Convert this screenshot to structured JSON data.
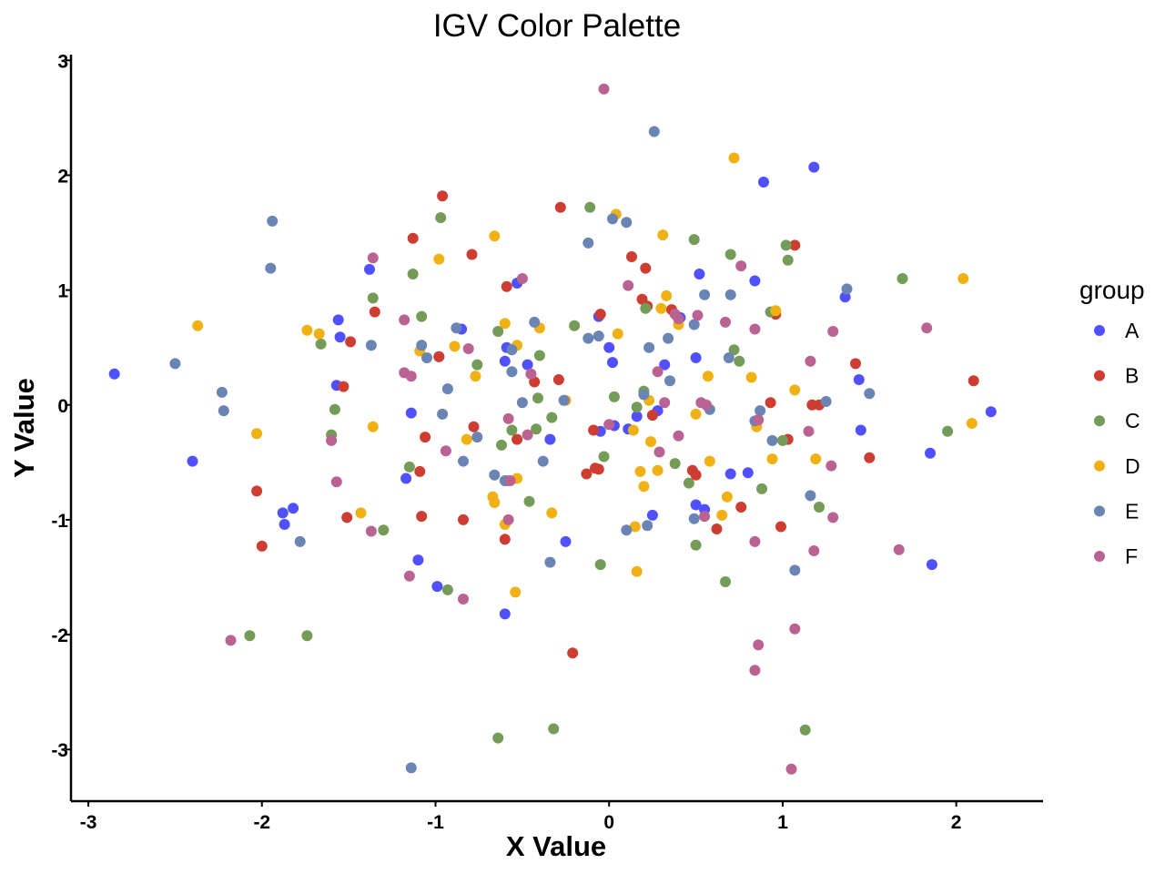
{
  "chart_data": {
    "type": "scatter",
    "title": "IGV Color Palette",
    "xlabel": "X Value",
    "ylabel": "Y Value",
    "xlim": [
      -3.1,
      2.5
    ],
    "ylim": [
      -3.45,
      3.05
    ],
    "xticks": [
      "-3",
      "-2",
      "-1",
      "0",
      "1",
      "2"
    ],
    "yticks": [
      "-3",
      "-2",
      "-1",
      "0",
      "1",
      "2",
      "3"
    ],
    "grid": false,
    "legend": {
      "title": "group",
      "position": "right"
    },
    "series": [
      {
        "name": "A",
        "color": "#5050FF",
        "points": [
          [
            -2.85,
            0.27
          ],
          [
            -2.4,
            -0.49
          ],
          [
            -1.88,
            -0.94
          ],
          [
            -1.82,
            -0.9
          ],
          [
            -1.87,
            -1.04
          ],
          [
            -1.56,
            0.74
          ],
          [
            -1.55,
            0.59
          ],
          [
            -1.38,
            1.18
          ],
          [
            -1.57,
            0.17
          ],
          [
            -1.17,
            -0.64
          ],
          [
            -1.14,
            -0.07
          ],
          [
            -1.1,
            -1.35
          ],
          [
            -0.99,
            -1.58
          ],
          [
            -0.98,
            0.42
          ],
          [
            -0.85,
            0.66
          ],
          [
            -0.53,
            1.06
          ],
          [
            -0.59,
            0.5
          ],
          [
            -0.6,
            0.38
          ],
          [
            -0.47,
            0.35
          ],
          [
            -0.34,
            -0.3
          ],
          [
            -0.25,
            -1.19
          ],
          [
            -0.6,
            -1.82
          ],
          [
            -0.06,
            0.77
          ],
          [
            -0.05,
            -0.23
          ],
          [
            0.0,
            0.5
          ],
          [
            0.02,
            0.37
          ],
          [
            0.03,
            -0.18
          ],
          [
            0.11,
            -0.21
          ],
          [
            0.16,
            -0.1
          ],
          [
            0.28,
            -0.05
          ],
          [
            0.32,
            0.35
          ],
          [
            0.25,
            -0.96
          ],
          [
            0.41,
            0.76
          ],
          [
            0.5,
            0.41
          ],
          [
            0.5,
            -0.87
          ],
          [
            0.52,
            1.14
          ],
          [
            0.55,
            -0.91
          ],
          [
            0.7,
            -0.6
          ],
          [
            0.8,
            -0.59
          ],
          [
            0.84,
            1.08
          ],
          [
            0.89,
            1.94
          ],
          [
            1.18,
            2.07
          ],
          [
            1.36,
            0.94
          ],
          [
            1.44,
            0.22
          ],
          [
            1.45,
            -0.22
          ],
          [
            1.85,
            -0.42
          ],
          [
            1.86,
            -1.39
          ],
          [
            2.2,
            -0.06
          ]
        ]
      },
      {
        "name": "B",
        "color": "#CE3D32",
        "points": [
          [
            -2.03,
            -0.75
          ],
          [
            -2.0,
            -1.23
          ],
          [
            -1.53,
            0.16
          ],
          [
            -1.51,
            -0.98
          ],
          [
            -1.49,
            0.55
          ],
          [
            -1.35,
            0.81
          ],
          [
            -1.13,
            1.45
          ],
          [
            -1.09,
            -0.58
          ],
          [
            -1.06,
            -0.28
          ],
          [
            -1.08,
            -0.97
          ],
          [
            -0.98,
            0.42
          ],
          [
            -0.96,
            1.82
          ],
          [
            -0.84,
            -1.0
          ],
          [
            -0.79,
            1.31
          ],
          [
            -0.78,
            -0.19
          ],
          [
            -0.59,
            1.03
          ],
          [
            -0.6,
            -1.17
          ],
          [
            -0.53,
            -0.3
          ],
          [
            -0.43,
            0.2
          ],
          [
            -0.29,
            0.22
          ],
          [
            -0.28,
            1.72
          ],
          [
            -0.21,
            -2.16
          ],
          [
            -0.13,
            -0.6
          ],
          [
            -0.09,
            -0.22
          ],
          [
            -0.08,
            -0.55
          ],
          [
            -0.06,
            -0.56
          ],
          [
            -0.05,
            0.79
          ],
          [
            0.13,
            1.29
          ],
          [
            0.19,
            0.92
          ],
          [
            0.21,
            1.19
          ],
          [
            0.22,
            0.86
          ],
          [
            0.25,
            -0.09
          ],
          [
            0.36,
            0.83
          ],
          [
            0.48,
            -0.57
          ],
          [
            0.5,
            -0.61
          ],
          [
            0.62,
            -1.08
          ],
          [
            0.76,
            -0.89
          ],
          [
            0.93,
            0.02
          ],
          [
            0.96,
            0.79
          ],
          [
            0.99,
            -1.06
          ],
          [
            1.03,
            -0.3
          ],
          [
            1.07,
            1.39
          ],
          [
            1.17,
            0.0
          ],
          [
            1.21,
            0.0
          ],
          [
            1.42,
            0.36
          ],
          [
            1.5,
            -0.46
          ],
          [
            2.1,
            0.21
          ]
        ]
      },
      {
        "name": "C",
        "color": "#749B58",
        "points": [
          [
            -2.07,
            -2.01
          ],
          [
            -1.74,
            -2.01
          ],
          [
            -1.66,
            0.53
          ],
          [
            -1.6,
            -0.26
          ],
          [
            -1.58,
            -0.04
          ],
          [
            -1.36,
            0.93
          ],
          [
            -1.3,
            -1.09
          ],
          [
            -1.15,
            -0.54
          ],
          [
            -1.13,
            1.14
          ],
          [
            -1.08,
            0.77
          ],
          [
            -0.97,
            1.63
          ],
          [
            -0.93,
            -1.61
          ],
          [
            -0.76,
            0.35
          ],
          [
            -0.64,
            0.64
          ],
          [
            -0.64,
            -2.9
          ],
          [
            -0.62,
            -0.35
          ],
          [
            -0.59,
            -0.66
          ],
          [
            -0.56,
            -0.22
          ],
          [
            -0.46,
            -0.84
          ],
          [
            -0.42,
            -0.21
          ],
          [
            -0.41,
            0.06
          ],
          [
            -0.4,
            0.43
          ],
          [
            -0.33,
            -0.11
          ],
          [
            -0.32,
            -2.82
          ],
          [
            -0.2,
            0.69
          ],
          [
            -0.11,
            1.72
          ],
          [
            -0.05,
            -1.39
          ],
          [
            -0.03,
            -0.45
          ],
          [
            0.03,
            0.07
          ],
          [
            0.16,
            -0.02
          ],
          [
            0.2,
            0.12
          ],
          [
            0.21,
            0.84
          ],
          [
            0.38,
            -0.51
          ],
          [
            0.46,
            -0.68
          ],
          [
            0.49,
            1.44
          ],
          [
            0.5,
            -1.22
          ],
          [
            0.67,
            -1.54
          ],
          [
            0.7,
            1.31
          ],
          [
            0.72,
            0.48
          ],
          [
            0.75,
            0.38
          ],
          [
            0.88,
            -0.73
          ],
          [
            0.93,
            0.81
          ],
          [
            1.0,
            -0.31
          ],
          [
            1.02,
            1.39
          ],
          [
            1.03,
            1.26
          ],
          [
            1.13,
            -2.83
          ],
          [
            1.21,
            -0.89
          ],
          [
            1.69,
            1.1
          ],
          [
            1.95,
            -0.23
          ]
        ]
      },
      {
        "name": "D",
        "color": "#F0B115",
        "points": [
          [
            -2.37,
            0.69
          ],
          [
            -2.03,
            -0.25
          ],
          [
            -1.74,
            0.65
          ],
          [
            -1.67,
            0.62
          ],
          [
            -1.43,
            -0.94
          ],
          [
            -1.36,
            -0.19
          ],
          [
            -1.09,
            0.47
          ],
          [
            -0.98,
            1.27
          ],
          [
            -0.89,
            0.51
          ],
          [
            -0.82,
            -0.3
          ],
          [
            -0.77,
            0.25
          ],
          [
            -0.66,
            1.47
          ],
          [
            -0.67,
            -0.8
          ],
          [
            -0.66,
            -0.85
          ],
          [
            -0.6,
            -1.04
          ],
          [
            -0.6,
            0.71
          ],
          [
            -0.53,
            0.52
          ],
          [
            -0.53,
            -0.64
          ],
          [
            -0.54,
            -1.63
          ],
          [
            -0.4,
            0.67
          ],
          [
            -0.33,
            -0.94
          ],
          [
            -0.25,
            0.04
          ],
          [
            0.04,
            1.66
          ],
          [
            0.05,
            0.62
          ],
          [
            0.15,
            -1.06
          ],
          [
            0.14,
            -0.22
          ],
          [
            0.16,
            -1.45
          ],
          [
            0.18,
            -0.58
          ],
          [
            0.2,
            -0.71
          ],
          [
            0.24,
            -0.32
          ],
          [
            0.23,
            0.04
          ],
          [
            0.28,
            -0.57
          ],
          [
            0.3,
            0.84
          ],
          [
            0.31,
            1.48
          ],
          [
            0.33,
            0.95
          ],
          [
            0.4,
            0.7
          ],
          [
            0.5,
            -0.08
          ],
          [
            0.57,
            0.25
          ],
          [
            0.58,
            -0.49
          ],
          [
            0.65,
            -0.96
          ],
          [
            0.68,
            -0.8
          ],
          [
            0.72,
            2.15
          ],
          [
            0.82,
            0.24
          ],
          [
            0.85,
            -0.19
          ],
          [
            0.94,
            -0.47
          ],
          [
            0.96,
            0.82
          ],
          [
            1.07,
            0.13
          ],
          [
            1.19,
            -0.47
          ],
          [
            2.04,
            1.1
          ],
          [
            2.09,
            -0.16
          ]
        ]
      },
      {
        "name": "E",
        "color": "#6A84B3",
        "points": [
          [
            -2.5,
            0.36
          ],
          [
            -2.23,
            0.11
          ],
          [
            -2.22,
            -0.05
          ],
          [
            -1.94,
            1.6
          ],
          [
            -1.95,
            1.19
          ],
          [
            -1.78,
            -1.19
          ],
          [
            -1.37,
            0.52
          ],
          [
            -1.14,
            -3.16
          ],
          [
            -1.08,
            0.52
          ],
          [
            -1.05,
            0.41
          ],
          [
            -0.96,
            -0.08
          ],
          [
            -0.93,
            0.14
          ],
          [
            -0.88,
            0.67
          ],
          [
            -0.84,
            -0.49
          ],
          [
            -0.76,
            -0.28
          ],
          [
            -0.66,
            -0.61
          ],
          [
            -0.6,
            -0.66
          ],
          [
            -0.56,
            0.29
          ],
          [
            -0.56,
            0.48
          ],
          [
            -0.5,
            0.02
          ],
          [
            -0.43,
            0.72
          ],
          [
            -0.38,
            -0.49
          ],
          [
            -0.34,
            -1.37
          ],
          [
            -0.26,
            0.04
          ],
          [
            -0.12,
            0.58
          ],
          [
            -0.12,
            1.41
          ],
          [
            -0.06,
            0.6
          ],
          [
            0.02,
            1.62
          ],
          [
            0.1,
            1.59
          ],
          [
            0.1,
            -1.09
          ],
          [
            0.2,
            0.09
          ],
          [
            0.22,
            -1.05
          ],
          [
            0.23,
            0.5
          ],
          [
            0.26,
            2.38
          ],
          [
            0.34,
            0.58
          ],
          [
            0.35,
            0.21
          ],
          [
            0.49,
            0.7
          ],
          [
            0.49,
            -0.99
          ],
          [
            0.55,
            0.96
          ],
          [
            0.58,
            -0.04
          ],
          [
            0.69,
            0.41
          ],
          [
            0.7,
            0.96
          ],
          [
            0.84,
            -0.14
          ],
          [
            0.87,
            -0.05
          ],
          [
            0.94,
            -0.31
          ],
          [
            1.07,
            -1.44
          ],
          [
            1.16,
            -0.79
          ],
          [
            1.25,
            0.03
          ],
          [
            1.37,
            1.01
          ],
          [
            1.5,
            0.1
          ]
        ]
      },
      {
        "name": "F",
        "color": "#BA6393",
        "points": [
          [
            -2.18,
            -2.05
          ],
          [
            -1.6,
            -0.31
          ],
          [
            -1.57,
            -0.67
          ],
          [
            -1.36,
            1.28
          ],
          [
            -1.37,
            -1.1
          ],
          [
            -1.18,
            0.74
          ],
          [
            -1.18,
            0.28
          ],
          [
            -1.14,
            0.25
          ],
          [
            -1.15,
            -1.49
          ],
          [
            -0.94,
            -0.4
          ],
          [
            -0.84,
            -1.69
          ],
          [
            -0.81,
            0.49
          ],
          [
            -0.58,
            -0.12
          ],
          [
            -0.58,
            -1.0
          ],
          [
            -0.57,
            -0.66
          ],
          [
            -0.5,
            1.1
          ],
          [
            -0.47,
            -0.26
          ],
          [
            -0.45,
            0.27
          ],
          [
            0.0,
            -0.17
          ],
          [
            0.11,
            1.04
          ],
          [
            0.28,
            0.29
          ],
          [
            0.29,
            -0.41
          ],
          [
            0.32,
            0.02
          ],
          [
            0.38,
            0.79
          ],
          [
            0.4,
            -0.27
          ],
          [
            0.4,
            0.75
          ],
          [
            0.51,
            0.78
          ],
          [
            0.53,
            0.02
          ],
          [
            0.55,
            -0.97
          ],
          [
            0.56,
            0.0
          ],
          [
            0.67,
            0.72
          ],
          [
            0.76,
            1.21
          ],
          [
            0.84,
            0.66
          ],
          [
            0.84,
            -1.19
          ],
          [
            0.84,
            -2.31
          ],
          [
            0.86,
            -2.09
          ],
          [
            0.86,
            -0.13
          ],
          [
            1.05,
            -3.17
          ],
          [
            1.07,
            -1.95
          ],
          [
            1.15,
            -0.23
          ],
          [
            1.16,
            0.38
          ],
          [
            1.18,
            -1.27
          ],
          [
            1.28,
            -0.53
          ],
          [
            1.29,
            0.64
          ],
          [
            1.29,
            -0.98
          ],
          [
            1.67,
            -1.26
          ],
          [
            1.83,
            0.67
          ],
          [
            -0.03,
            2.75
          ]
        ]
      }
    ]
  }
}
